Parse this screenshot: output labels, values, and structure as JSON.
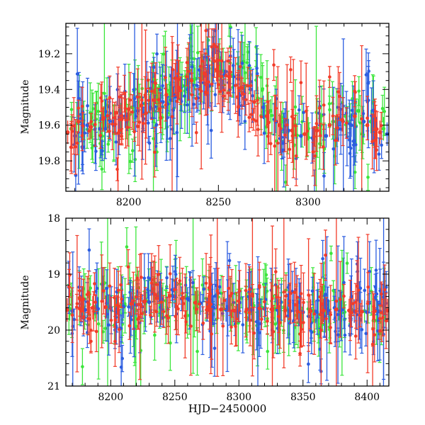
{
  "chart_data": [
    {
      "type": "scatter",
      "panel": "top",
      "title": "",
      "xlabel": "",
      "ylabel": "Magnitude",
      "xlim": [
        8165,
        8345
      ],
      "ylim": [
        19.97,
        19.03
      ],
      "y_inverted": true,
      "xticks": [
        8200,
        8250,
        8300
      ],
      "xtick_labels": [
        "8200",
        "8250",
        "8300"
      ],
      "yticks": [
        19.2,
        19.4,
        19.6,
        19.8
      ],
      "ytick_labels": [
        "19.2",
        "19.4",
        "19.6",
        "19.8"
      ],
      "grid": false,
      "legend": "none",
      "series": [
        {
          "color": "#3ce63c",
          "x": [
            8168,
            8174,
            8181,
            8188,
            8195,
            8202,
            8209,
            8216,
            8223,
            8230,
            8237,
            8244,
            8251,
            8258,
            8265,
            8272,
            8279,
            8286,
            8293,
            8300,
            8307,
            8314,
            8321,
            8328,
            8335,
            8342
          ],
          "y": [
            19.62,
            19.56,
            19.6,
            19.55,
            19.52,
            19.5,
            19.48,
            19.45,
            19.42,
            19.38,
            19.34,
            19.3,
            19.28,
            19.32,
            19.38,
            19.45,
            19.52,
            19.58,
            19.6,
            19.62,
            19.6,
            19.58,
            19.55,
            19.52,
            19.58,
            19.62
          ]
        },
        {
          "color": "#2c5de0",
          "x": [
            8170,
            8177,
            8184,
            8191,
            8198,
            8205,
            8212,
            8219,
            8226,
            8233,
            8240,
            8247,
            8254,
            8261,
            8268,
            8275,
            8282,
            8289,
            8296,
            8303,
            8310,
            8317,
            8324,
            8331,
            8338,
            8344
          ],
          "y": [
            19.66,
            19.6,
            19.62,
            19.58,
            19.55,
            19.52,
            19.5,
            19.47,
            19.44,
            19.4,
            19.36,
            19.32,
            19.3,
            19.34,
            19.4,
            19.5,
            19.58,
            19.63,
            19.66,
            19.68,
            19.66,
            19.62,
            19.6,
            19.58,
            19.62,
            19.65
          ]
        },
        {
          "color": "#f23c2a",
          "x": [
            8166,
            8172,
            8179,
            8186,
            8193,
            8200,
            8207,
            8214,
            8221,
            8228,
            8235,
            8242,
            8249,
            8256,
            8263,
            8270,
            8277,
            8284,
            8291,
            8298,
            8305,
            8312,
            8319,
            8326,
            8333,
            8340
          ],
          "y": [
            19.64,
            19.58,
            19.61,
            19.56,
            19.53,
            19.51,
            19.49,
            19.46,
            19.43,
            19.39,
            19.35,
            19.31,
            19.29,
            19.33,
            19.39,
            19.47,
            19.55,
            19.6,
            19.63,
            19.65,
            19.63,
            19.6,
            19.57,
            19.55,
            19.6,
            19.64
          ]
        }
      ]
    },
    {
      "type": "scatter",
      "panel": "bottom",
      "title": "",
      "xlabel": "HJD−2450000",
      "ylabel": "Magnitude",
      "xlim": [
        8165,
        8417
      ],
      "ylim": [
        21,
        18
      ],
      "y_inverted": true,
      "xticks": [
        8200,
        8250,
        8300,
        8350,
        8400
      ],
      "xtick_labels": [
        "8200",
        "8250",
        "8300",
        "8350",
        "8400"
      ],
      "yticks": [
        18,
        19,
        20,
        21
      ],
      "ytick_labels": [
        "18",
        "19",
        "20",
        "21"
      ],
      "grid": false,
      "legend": "none",
      "series": [
        {
          "color": "#3ce63c",
          "x": [
            8168,
            8178,
            8188,
            8198,
            8208,
            8218,
            8228,
            8238,
            8248,
            8258,
            8268,
            8278,
            8288,
            8298,
            8308,
            8318,
            8328,
            8338,
            8348,
            8358,
            8368,
            8378,
            8388,
            8398,
            8408,
            8414
          ],
          "y": [
            19.62,
            19.6,
            19.58,
            19.58,
            19.56,
            19.52,
            19.48,
            19.42,
            19.38,
            19.42,
            19.5,
            19.58,
            19.62,
            19.64,
            19.62,
            19.6,
            19.62,
            19.64,
            19.66,
            19.65,
            19.64,
            19.62,
            19.64,
            19.66,
            19.65,
            19.64
          ]
        },
        {
          "color": "#2c5de0",
          "x": [
            8170,
            8180,
            8190,
            8200,
            8210,
            8220,
            8230,
            8240,
            8250,
            8260,
            8270,
            8280,
            8290,
            8300,
            8310,
            8320,
            8330,
            8340,
            8350,
            8360,
            8370,
            8380,
            8390,
            8400,
            8410
          ],
          "y": [
            19.66,
            19.64,
            19.62,
            19.6,
            19.58,
            19.55,
            19.5,
            19.45,
            19.4,
            19.44,
            19.52,
            19.6,
            19.64,
            19.66,
            19.64,
            19.62,
            19.64,
            19.66,
            19.68,
            19.67,
            19.66,
            19.64,
            19.66,
            19.68,
            19.67
          ]
        },
        {
          "color": "#f23c2a",
          "x": [
            8166,
            8176,
            8186,
            8196,
            8206,
            8216,
            8226,
            8236,
            8246,
            8256,
            8266,
            8276,
            8286,
            8296,
            8306,
            8316,
            8326,
            8336,
            8346,
            8356,
            8366,
            8376,
            8386,
            8396,
            8406,
            8416
          ],
          "y": [
            19.64,
            19.62,
            19.6,
            19.59,
            19.57,
            19.53,
            19.49,
            19.43,
            19.39,
            19.43,
            19.51,
            19.59,
            19.63,
            19.65,
            19.63,
            19.61,
            19.63,
            19.65,
            19.67,
            19.66,
            19.65,
            19.63,
            19.65,
            19.67,
            19.66,
            19.65
          ]
        }
      ]
    }
  ]
}
